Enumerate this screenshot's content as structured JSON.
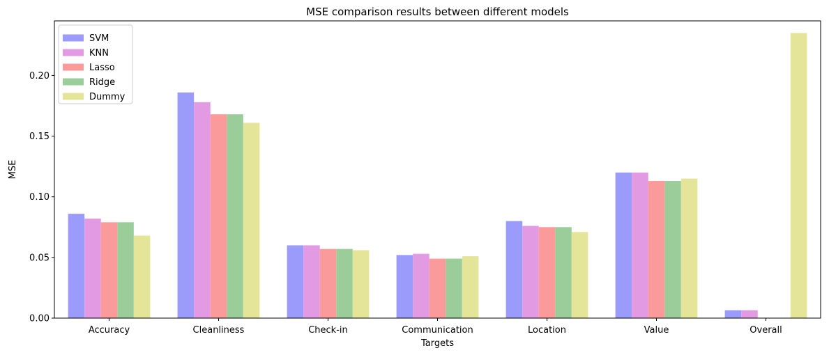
{
  "chart_data": {
    "type": "bar",
    "title": "MSE comparison results between different models",
    "xlabel": "Targets",
    "ylabel": "MSE",
    "ylim": [
      0,
      0.245
    ],
    "yticks": [
      "0.00",
      "0.05",
      "0.10",
      "0.15",
      "0.20"
    ],
    "categories": [
      "Accuracy",
      "Cleanliness",
      "Check-in",
      "Communication",
      "Location",
      "Value",
      "Overall"
    ],
    "series": [
      {
        "name": "SVM",
        "color": "#9b9bfb",
        "values": [
          0.086,
          0.186,
          0.06,
          0.052,
          0.08,
          0.12,
          0.0065
        ]
      },
      {
        "name": "KNN",
        "color": "#e29ae2",
        "values": [
          0.082,
          0.178,
          0.06,
          0.053,
          0.076,
          0.12,
          0.0065
        ]
      },
      {
        "name": "Lasso",
        "color": "#fb9a9a",
        "values": [
          0.079,
          0.168,
          0.057,
          0.049,
          0.075,
          0.113,
          0
        ]
      },
      {
        "name": "Ridge",
        "color": "#9acd9a",
        "values": [
          0.079,
          0.168,
          0.057,
          0.049,
          0.075,
          0.113,
          0
        ]
      },
      {
        "name": "Dummy",
        "color": "#e5e59a",
        "values": [
          0.068,
          0.161,
          0.056,
          0.051,
          0.071,
          0.115,
          0.235
        ]
      }
    ],
    "grid": false,
    "legend_position": "top-left"
  }
}
